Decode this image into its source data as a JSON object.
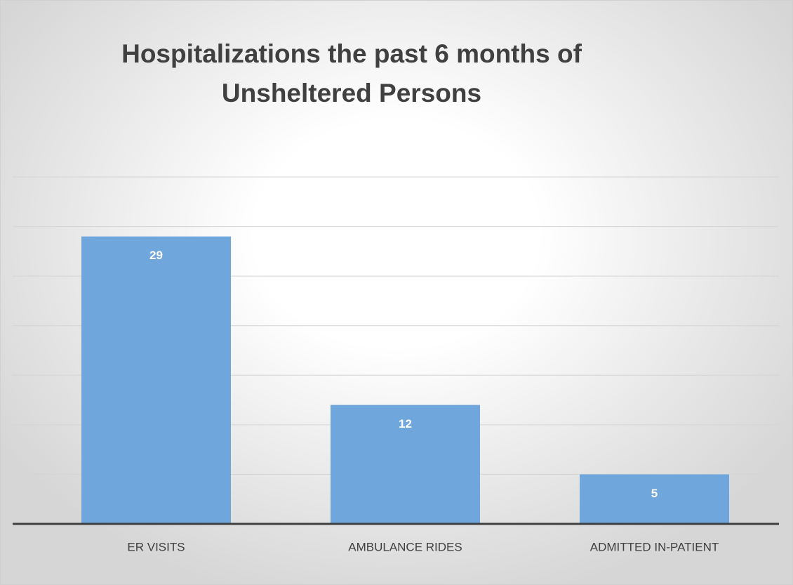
{
  "chart_data": {
    "type": "bar",
    "title": "Hospitalizations the past 6 months of Unsheltered Persons",
    "categories": [
      "ER VISITS",
      "AMBULANCE RIDES",
      "ADMITTED IN-PATIENT"
    ],
    "values": [
      29,
      12,
      5
    ],
    "color": "#6fa6dc",
    "ylim": [
      0,
      35
    ],
    "yticks": [
      0,
      5,
      10,
      15,
      20,
      25,
      30,
      35
    ],
    "grid": true
  }
}
